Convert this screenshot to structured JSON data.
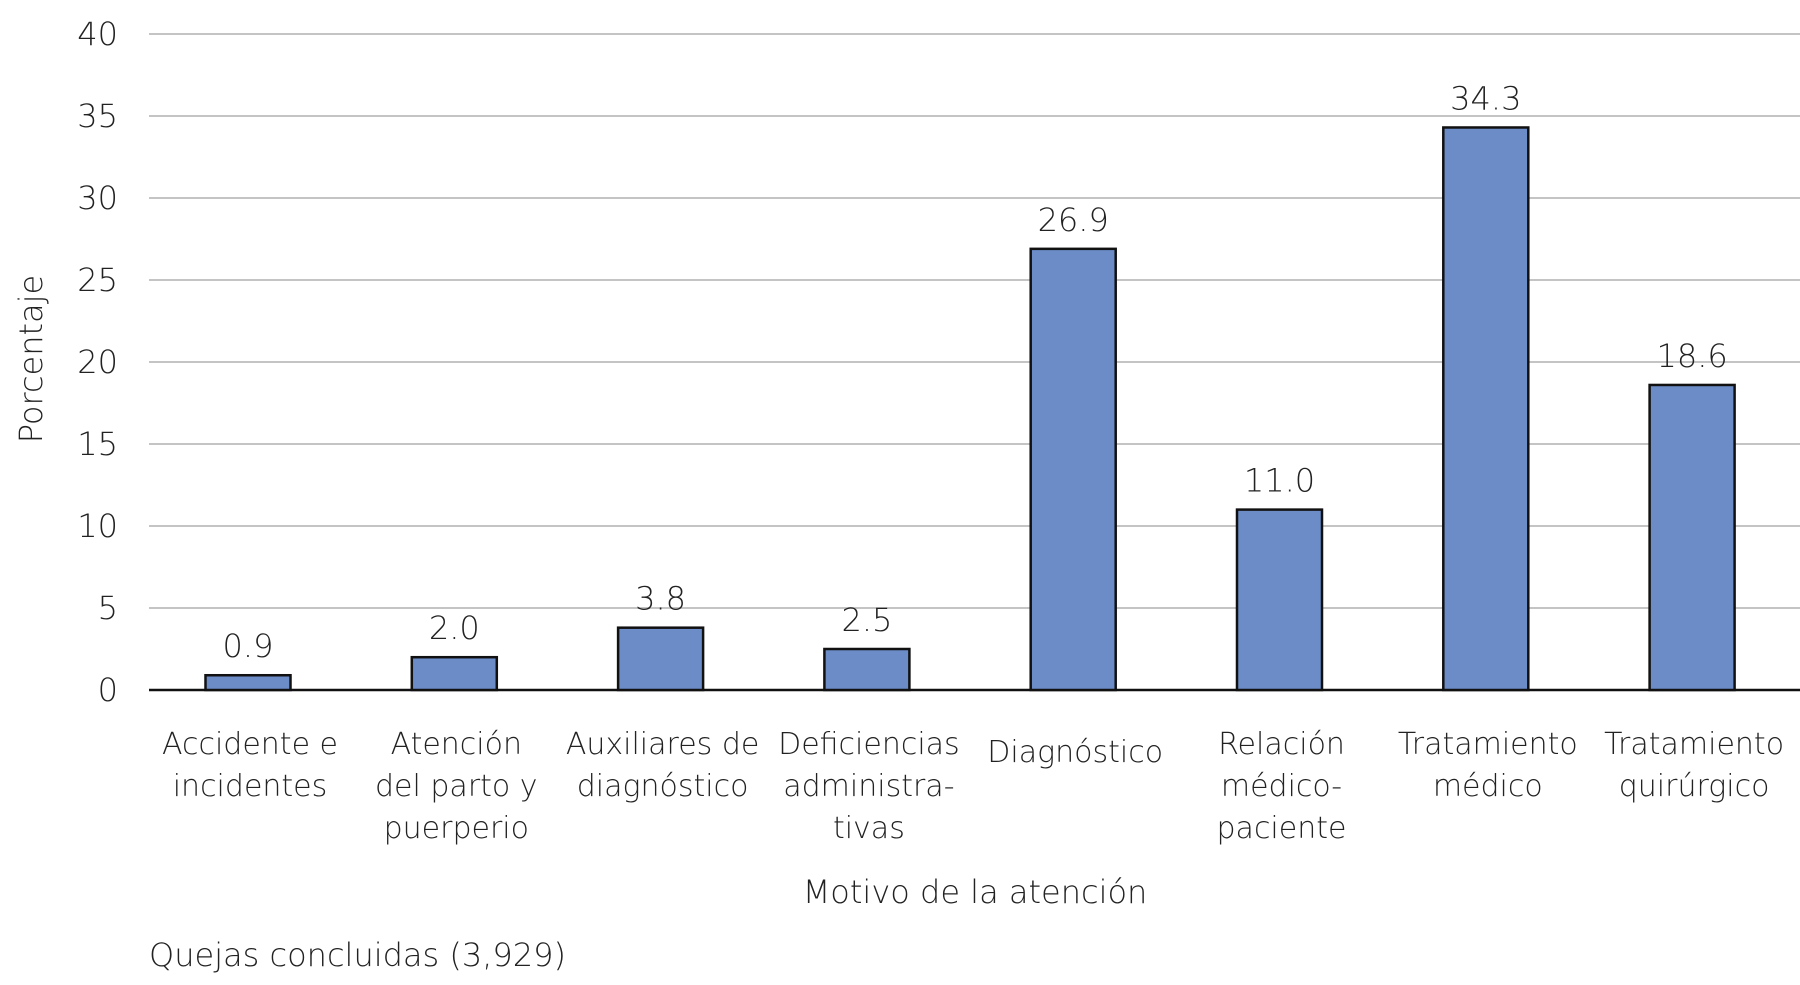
{
  "chart_data": {
    "type": "bar",
    "categories": [
      [
        "Accidente e",
        "incidentes"
      ],
      [
        "Atención",
        "del parto y",
        "puerperio"
      ],
      [
        "Auxiliares de",
        "diagnóstico"
      ],
      [
        "Deficiencias",
        "administra-",
        "tivas"
      ],
      [
        "Diagnóstico"
      ],
      [
        "Relación",
        "médico-",
        "paciente"
      ],
      [
        "Tratamiento",
        "médico"
      ],
      [
        "Tratamiento",
        "quirúrgico"
      ]
    ],
    "values": [
      0.9,
      2.0,
      3.8,
      2.5,
      26.9,
      11.0,
      34.3,
      18.6
    ],
    "value_labels": [
      "0.9",
      "2.0",
      "3.8",
      "2.5",
      "26.9",
      "11.0",
      "34.3",
      "18.6"
    ],
    "xlabel": "Motivo de la atención",
    "ylabel": "Porcentaje",
    "ylim": [
      0,
      40
    ],
    "yticks": [
      0,
      5,
      10,
      15,
      20,
      25,
      30,
      35,
      40
    ],
    "grid": true,
    "bar_color": "#6b8cc7",
    "note": "Quejas concluidas (3,929)"
  }
}
